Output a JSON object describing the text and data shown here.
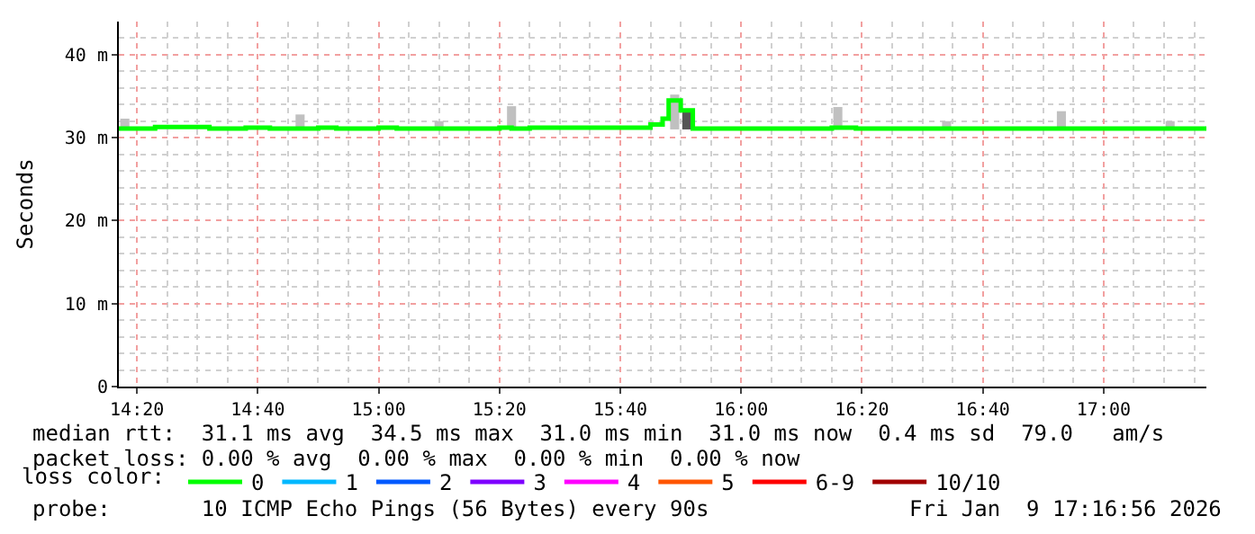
{
  "chart_data": {
    "type": "step",
    "ylabel": "Seconds",
    "xlim": [
      "2026-01-09T14:17",
      "2026-01-09T17:17"
    ],
    "xticks": [
      {
        "value": "2026-01-09T14:20",
        "label": "14:20"
      },
      {
        "value": "2026-01-09T14:40",
        "label": "14:40"
      },
      {
        "value": "2026-01-09T15:00",
        "label": "15:00"
      },
      {
        "value": "2026-01-09T15:20",
        "label": "15:20"
      },
      {
        "value": "2026-01-09T15:40",
        "label": "15:40"
      },
      {
        "value": "2026-01-09T16:00",
        "label": "16:00"
      },
      {
        "value": "2026-01-09T16:20",
        "label": "16:20"
      },
      {
        "value": "2026-01-09T16:40",
        "label": "16:40"
      },
      {
        "value": "2026-01-09T17:00",
        "label": "17:00"
      }
    ],
    "ylim": [
      0,
      44
    ],
    "yticks": [
      0,
      {
        "value": 10,
        "label": "10 m"
      },
      {
        "value": 20,
        "label": "20 m"
      },
      {
        "value": 30,
        "label": "30 m"
      },
      {
        "value": 40,
        "label": "40 m"
      }
    ],
    "grid": true,
    "legend": "bottom",
    "legend_title": "loss color:",
    "series": [
      {
        "type": "bar",
        "color": "#c0c0c0",
        "colors": [
          "#c0c0c0",
          "#c0c0c0",
          "#c0c0c0",
          "#c0c0c0",
          "#c0c0c0",
          "#555555",
          "#c0c0c0",
          "#c0c0c0",
          "#c0c0c0",
          "#c0c0c0"
        ],
        "x": [
          "2026-01-09T14:18",
          "2026-01-09T14:47",
          "2026-01-09T15:10",
          "2026-01-09T15:22",
          "2026-01-09T15:49",
          "2026-01-09T15:51",
          "2026-01-09T16:16",
          "2026-01-09T16:34",
          "2026-01-09T16:53",
          "2026-01-09T17:11"
        ],
        "base": [
          31,
          31,
          31,
          31,
          31,
          31,
          31,
          31,
          31,
          31
        ],
        "values": [
          1.3,
          1.8,
          1.0,
          2.8,
          4.2,
          2.3,
          2.7,
          1.0,
          2.2,
          1.0
        ]
      },
      {
        "name": "0",
        "color": "#00ff00",
        "x": [
          "2026-01-09T14:17",
          "2026-01-09T14:23",
          "2026-01-09T14:32",
          "2026-01-09T14:38",
          "2026-01-09T14:42",
          "2026-01-09T14:50",
          "2026-01-09T14:53",
          "2026-01-09T15:00",
          "2026-01-09T15:03",
          "2026-01-09T15:20",
          "2026-01-09T15:22",
          "2026-01-09T15:25",
          "2026-01-09T15:45",
          "2026-01-09T15:47",
          "2026-01-09T15:48",
          "2026-01-09T15:50",
          "2026-01-09T15:52",
          "2026-01-09T16:15",
          "2026-01-09T16:19",
          "2026-01-09T17:17"
        ],
        "values": [
          31.1,
          31.3,
          31.1,
          31.2,
          31.1,
          31.2,
          31.1,
          31.2,
          31.1,
          31.2,
          31.1,
          31.2,
          31.6,
          32.3,
          34.5,
          33.3,
          31.1,
          31.2,
          31.1,
          31.1
        ]
      },
      {
        "name": "1",
        "color": "#00b8ff"
      },
      {
        "name": "2",
        "color": "#0059ff"
      },
      {
        "name": "3",
        "color": "#7e00ff"
      },
      {
        "name": "4",
        "color": "#ff00ff"
      },
      {
        "name": "5",
        "color": "#ff5500"
      },
      {
        "name": "6-9",
        "color": "#ff0000"
      },
      {
        "name": "10/10",
        "color": "#a10000"
      }
    ],
    "annotations": [
      "median rtt:  31.1 ms avg  34.5 ms max  31.0 ms min  31.0 ms now  0.4 ms sd  79.0   am/s",
      "packet loss: 0.00 % avg  0.00 % max  0.00 % min  0.00 % now",
      "probe:       10 ICMP Echo Pings (56 Bytes) every 90s",
      "Fri Jan  9 17:16:56 2026"
    ]
  }
}
